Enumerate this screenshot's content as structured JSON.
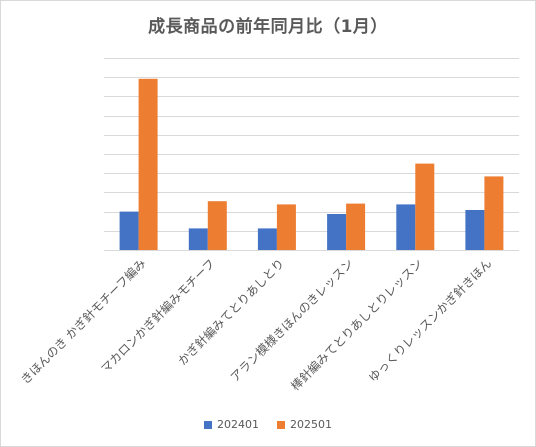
{
  "chart_data": {
    "type": "bar",
    "title": "成長商品の前年同月比（1月）",
    "categories": [
      "きほんのき かぎ針モチーフ編み",
      "マカロンかぎ針編みモチーフ",
      "かぎ針編みてとりあしとり",
      "アラン模様きほんのきレッスン",
      "棒針編みてとりあしとりレッスン",
      "ゆっくりレッスンかぎ針きほん"
    ],
    "series": [
      {
        "name": "202401",
        "color": "#4472c4",
        "values": [
          48,
          27,
          27,
          45,
          57,
          50
        ]
      },
      {
        "name": "202501",
        "color": "#ed7d31",
        "values": [
          214,
          61,
          57,
          58,
          108,
          92
        ]
      }
    ],
    "ylim": [
      0,
      240
    ],
    "ytick_step": 24,
    "grid": true,
    "legend_position": "bottom",
    "xlabel": "",
    "ylabel": ""
  }
}
